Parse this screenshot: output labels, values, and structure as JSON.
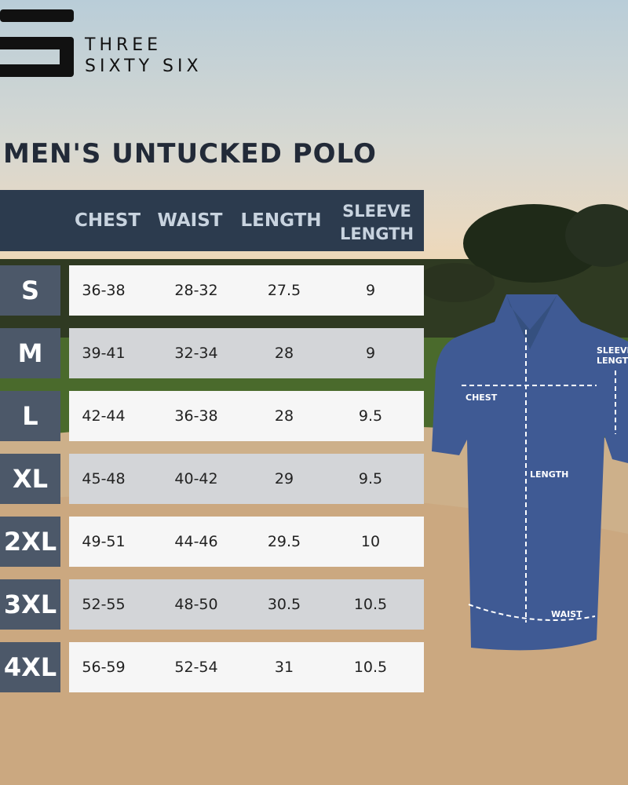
{
  "brand": {
    "line1": "THREE",
    "line2": "SIXTY SIX"
  },
  "title": "MEN'S UNTUCKED POLO",
  "table": {
    "headers": [
      "CHEST",
      "WAIST",
      "LENGTH",
      "SLEEVE LENGTH"
    ],
    "rows": [
      {
        "size": "S",
        "chest": "36-38",
        "waist": "28-32",
        "length": "27.5",
        "sleeve": "9"
      },
      {
        "size": "M",
        "chest": "39-41",
        "waist": "32-34",
        "length": "28",
        "sleeve": "9"
      },
      {
        "size": "L",
        "chest": "42-44",
        "waist": "36-38",
        "length": "28",
        "sleeve": "9.5"
      },
      {
        "size": "XL",
        "chest": "45-48",
        "waist": "40-42",
        "length": "29",
        "sleeve": "9.5"
      },
      {
        "size": "2XL",
        "chest": "49-51",
        "waist": "44-46",
        "length": "29.5",
        "sleeve": "10"
      },
      {
        "size": "3XL",
        "chest": "52-55",
        "waist": "48-50",
        "length": "30.5",
        "sleeve": "10.5"
      },
      {
        "size": "4XL",
        "chest": "56-59",
        "waist": "52-54",
        "length": "31",
        "sleeve": "10.5"
      }
    ]
  },
  "diagram": {
    "chest": "CHEST",
    "length": "LENGTH",
    "waist": "WAIST",
    "sleeve_line1": "SLEEVE",
    "sleeve_line2": "LENGTH"
  },
  "colors": {
    "header": "#2c3b4e",
    "size_cell": "#4c5869",
    "shirt": "#3f5a94"
  }
}
